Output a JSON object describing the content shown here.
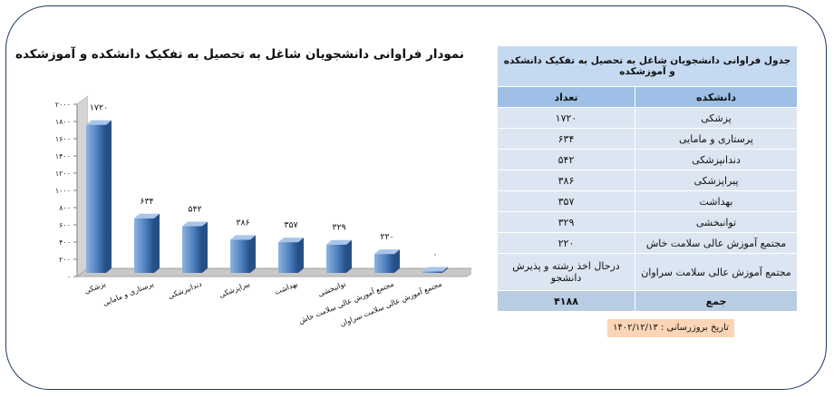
{
  "chart_data": {
    "type": "bar",
    "title": "نمودار فراوانی دانشجویان شاغل به تحصیل به تفکیک دانشکده و آموزشکده",
    "categories": [
      "پزشکی",
      "پرستاری و مامایی",
      "دندانپزشکی",
      "پیراپزشکی",
      "بهداشت",
      "توانبخشی",
      "مجتمع آموزش عالی سلامت خاش",
      "مجتمع آموزش عالی سلامت سراوان"
    ],
    "values": [
      1720,
      634,
      542,
      386,
      357,
      329,
      220,
      0
    ],
    "value_labels": [
      "۱۷۲۰",
      "۶۳۴",
      "۵۴۲",
      "۳۸۶",
      "۳۵۷",
      "۳۲۹",
      "۲۲۰",
      "۰"
    ],
    "ylim": [
      0,
      2000
    ],
    "yticks": [
      0,
      200,
      400,
      600,
      800,
      1000,
      1200,
      1400,
      1600,
      1800,
      2000
    ],
    "ytick_labels": [
      "۰",
      "۲۰۰",
      "۴۰۰",
      "۶۰۰",
      "۸۰۰",
      "۱۰۰۰",
      "۱۲۰۰",
      "۱۴۰۰",
      "۱۶۰۰",
      "۱۸۰۰",
      "۲۰۰۰"
    ],
    "bar_color": "#4f81bd",
    "xlabel": "",
    "ylabel": ""
  },
  "table": {
    "title": "جدول فراوانی دانشجویان شاغل به تحصیل به تفکیک دانشکده و آموزشکده",
    "col_faculty": "دانشکده",
    "col_count": "تعداد",
    "rows": [
      {
        "name": "پزشکی",
        "count": "۱۷۲۰"
      },
      {
        "name": "پرستاری و مامایی",
        "count": "۶۳۴"
      },
      {
        "name": "دندانپزشکی",
        "count": "۵۴۲"
      },
      {
        "name": "پیراپزشکی",
        "count": "۳۸۶"
      },
      {
        "name": "بهداشت",
        "count": "۳۵۷"
      },
      {
        "name": "توانبخشی",
        "count": "۳۲۹"
      },
      {
        "name": "مجتمع آموزش عالی سلامت خاش",
        "count": "۲۲۰"
      },
      {
        "name": "مجتمع آموزش عالی سلامت سراوان",
        "count": "درحال اخذ رشته و پذیرش دانشجو"
      }
    ],
    "total_label": "جمع",
    "total_value": "۴۱۸۸"
  },
  "update_date": "تاریخ بروزرسانی : ۱۴۰۲/۱۲/۱۳"
}
